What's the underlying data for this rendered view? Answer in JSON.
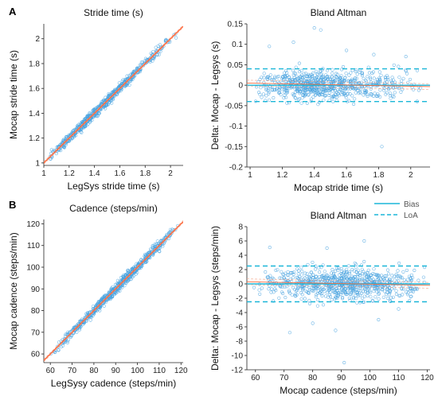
{
  "panel_labels": [
    "A",
    "B"
  ],
  "legend": {
    "bias_label": "Bias",
    "loa_label": "LoA",
    "bias_color": "#1ab6d8",
    "loa_color": "#1ab6d8"
  },
  "colors": {
    "points": "#4aa3df",
    "fit_line": "#ff6a3d",
    "grid_dark": "#444444",
    "loa": "#1ab6d8",
    "ci": "#f2a48a"
  },
  "chart_data": [
    {
      "type": "scatter",
      "title": "Stride time (s)",
      "xlabel": "LegSys stride time (s)",
      "ylabel": "Mocap stride time (s)",
      "xlim": [
        1,
        2.1
      ],
      "ylim": [
        0.98,
        2.12
      ],
      "xticks": [
        1,
        1.2,
        1.4,
        1.6,
        1.8,
        2
      ],
      "yticks": [
        1,
        1.2,
        1.4,
        1.6,
        1.8,
        2
      ],
      "fit": {
        "slope": 1.0,
        "intercept": 0.0
      },
      "points": {
        "count": 700,
        "x_range": [
          1.02,
          2.08
        ],
        "x_mode": 1.35,
        "y_spread": 0.018
      }
    },
    {
      "type": "scatter",
      "title": "Bland Altman",
      "xlabel": "Mocap stride time (s)",
      "ylabel": "Delta: Mocap - Legsys (s)",
      "xlim": [
        0.98,
        2.12
      ],
      "ylim": [
        -0.2,
        0.15
      ],
      "xticks": [
        1,
        1.2,
        1.4,
        1.6,
        1.8,
        2
      ],
      "yticks": [
        -0.2,
        -0.15,
        -0.1,
        -0.05,
        0,
        0.05,
        0.1,
        0.15
      ],
      "bias": 0.0,
      "loa": [
        -0.04,
        0.04
      ],
      "points": {
        "count": 700,
        "x_range": [
          1.02,
          2.08
        ],
        "x_mode": 1.35,
        "y_spread": 0.018
      },
      "outliers": [
        [
          1.4,
          0.14
        ],
        [
          1.44,
          0.135
        ],
        [
          1.27,
          0.105
        ],
        [
          1.12,
          0.095
        ],
        [
          1.82,
          -0.15
        ],
        [
          1.6,
          0.085
        ],
        [
          1.97,
          0.07
        ],
        [
          1.77,
          0.075
        ]
      ]
    },
    {
      "type": "scatter",
      "title": "Cadence (steps/min)",
      "xlabel": "LegSysy cadence (steps/min)",
      "ylabel": "Mocap cadence (steps/min)",
      "xlim": [
        57,
        121
      ],
      "ylim": [
        56,
        122
      ],
      "xticks": [
        60,
        70,
        80,
        90,
        100,
        110,
        120
      ],
      "yticks": [
        60,
        70,
        80,
        90,
        100,
        110,
        120
      ],
      "fit": {
        "slope": 1.0,
        "intercept": 0.0
      },
      "points": {
        "count": 750,
        "x_range": [
          59,
          120
        ],
        "x_mode": 95,
        "y_spread": 1.1
      }
    },
    {
      "type": "scatter",
      "title": "Bland Altman",
      "xlabel": "Mocap cadence (steps/min)",
      "ylabel": "Delta: Mocap - Legsys (steps/min)",
      "xlim": [
        57,
        121
      ],
      "ylim": [
        -12,
        8
      ],
      "xticks": [
        60,
        70,
        80,
        90,
        100,
        110,
        120
      ],
      "yticks": [
        -12,
        -10,
        -8,
        -6,
        -4,
        -2,
        0,
        2,
        4,
        6,
        8
      ],
      "bias": 0.0,
      "loa": [
        -2.5,
        2.5
      ],
      "points": {
        "count": 750,
        "x_range": [
          59,
          120
        ],
        "x_mode": 95,
        "y_spread": 1.1
      },
      "outliers": [
        [
          91,
          -11
        ],
        [
          80,
          -5.5
        ],
        [
          88,
          -6.5
        ],
        [
          72,
          -6.8
        ],
        [
          65,
          5.1
        ],
        [
          98,
          6.0
        ],
        [
          85,
          5.0
        ],
        [
          103,
          -5.0
        ],
        [
          110,
          -3.5
        ]
      ]
    }
  ]
}
